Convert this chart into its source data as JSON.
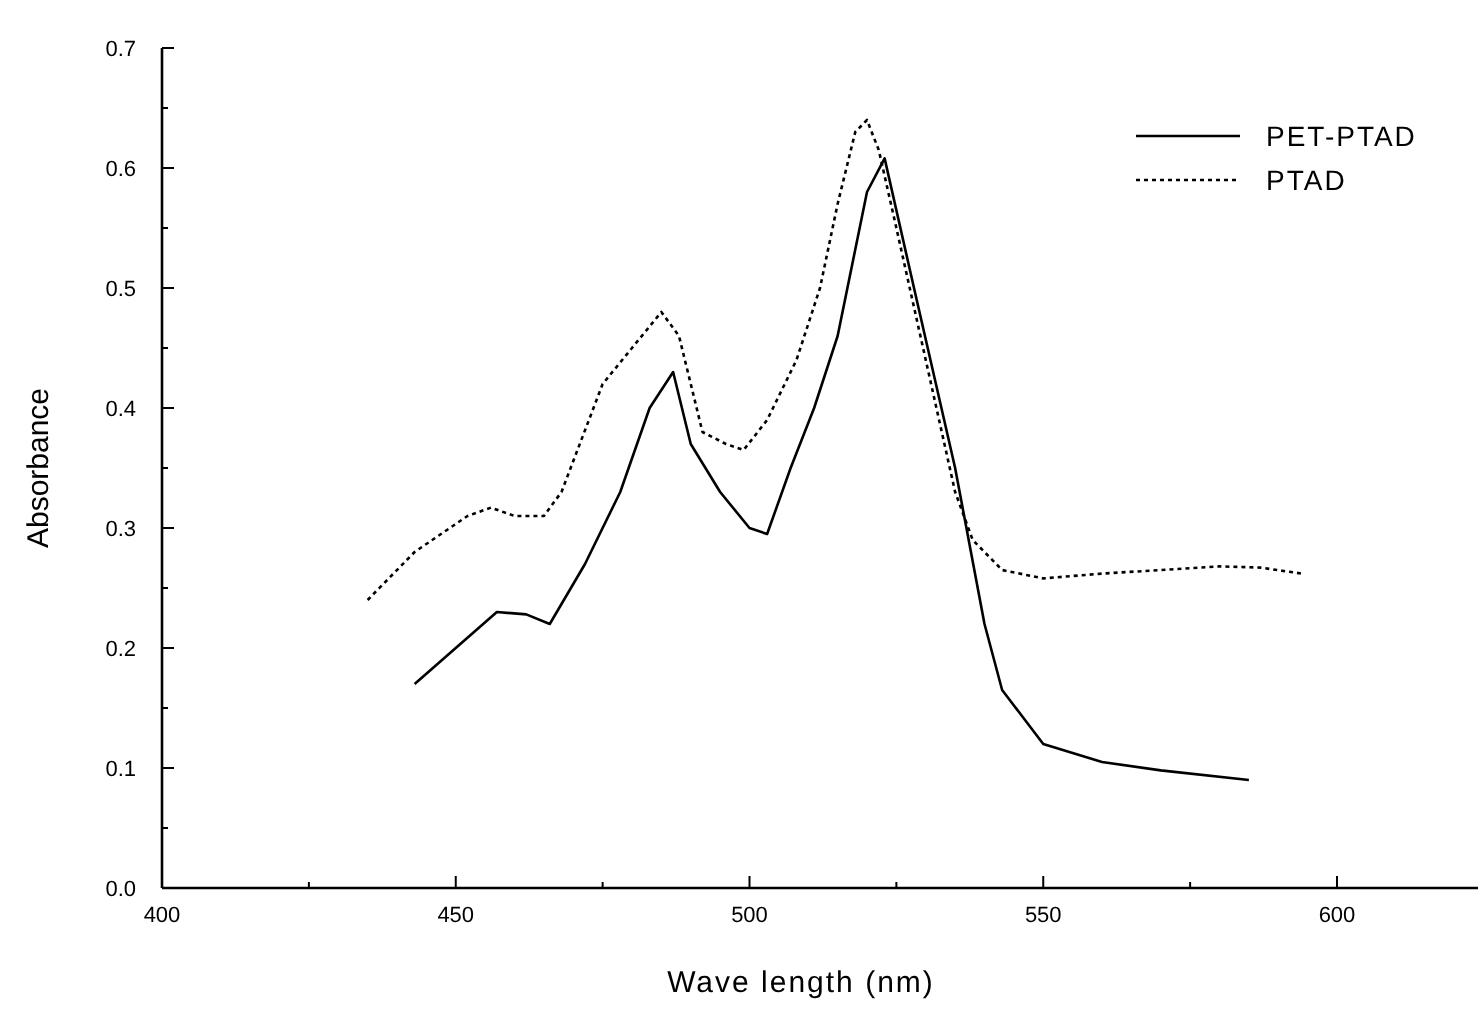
{
  "chart_data": {
    "type": "line",
    "xlabel": "Wave length (nm)",
    "ylabel": "Absorbance",
    "xlim": [
      400,
      624
    ],
    "xticks": [
      400,
      {
        "value": 425,
        "label": null
      },
      450,
      {
        "value": 475,
        "label": null
      },
      500,
      {
        "value": 525,
        "label": null
      },
      550,
      {
        "value": 575,
        "label": null
      },
      600
    ],
    "ylim": [
      0,
      0.7
    ],
    "yticks": [
      "0.0",
      {
        "value": 0.05,
        "label": null
      },
      0.1,
      {
        "value": 0.15,
        "label": null
      },
      0.2,
      {
        "value": 0.25,
        "label": null
      },
      0.3,
      {
        "value": 0.35,
        "label": null
      },
      0.4,
      {
        "value": 0.45,
        "label": null
      },
      0.5,
      {
        "value": 0.55,
        "label": null
      },
      0.6,
      {
        "value": 0.65,
        "label": null
      },
      0.7
    ],
    "legend": "top right",
    "grid": false,
    "marker": "none",
    "series": [
      {
        "name": "PET-PTAD",
        "color": "#000000",
        "line_style": "solid",
        "x": [
          443,
          457,
          462,
          466,
          472,
          478,
          483,
          487,
          490,
          495,
          500,
          503,
          507,
          511,
          515,
          520,
          523,
          528,
          535,
          540,
          543,
          550,
          560,
          570,
          585
        ],
        "values": [
          0.17,
          0.23,
          0.228,
          0.22,
          0.27,
          0.33,
          0.4,
          0.43,
          0.37,
          0.33,
          0.3,
          0.295,
          0.35,
          0.4,
          0.46,
          0.58,
          0.608,
          0.5,
          0.35,
          0.22,
          0.165,
          0.12,
          0.105,
          0.098,
          0.09
        ]
      },
      {
        "name": "PTAD",
        "color": "#000000",
        "line_style": "dotted",
        "x": [
          435,
          443,
          452,
          456,
          460,
          465,
          468,
          475,
          480,
          485,
          488,
          492,
          496,
          499,
          503,
          508,
          512,
          515,
          518,
          520,
          522,
          525,
          530,
          535,
          538,
          543,
          550,
          560,
          570,
          580,
          587,
          594
        ],
        "values": [
          0.24,
          0.28,
          0.31,
          0.317,
          0.31,
          0.31,
          0.33,
          0.42,
          0.45,
          0.48,
          0.46,
          0.38,
          0.37,
          0.365,
          0.39,
          0.44,
          0.5,
          0.57,
          0.63,
          0.64,
          0.615,
          0.55,
          0.44,
          0.33,
          0.29,
          0.265,
          0.258,
          0.262,
          0.265,
          0.268,
          0.267,
          0.262
        ]
      }
    ]
  }
}
